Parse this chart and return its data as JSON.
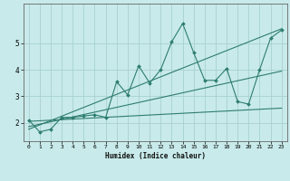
{
  "title": "",
  "xlabel": "Humidex (Indice chaleur)",
  "bg_color": "#c8eaea",
  "line_color": "#2e7d6e",
  "grid_color": "#a8d0d0",
  "xlim": [
    -0.5,
    23.5
  ],
  "ylim": [
    1.3,
    6.5
  ],
  "xticks": [
    0,
    1,
    2,
    3,
    4,
    5,
    6,
    7,
    8,
    9,
    10,
    11,
    12,
    13,
    14,
    15,
    16,
    17,
    18,
    19,
    20,
    21,
    22,
    23
  ],
  "yticks": [
    2,
    3,
    4,
    5
  ],
  "line1_x": [
    0,
    1,
    2,
    3,
    4,
    5,
    6,
    7,
    8,
    9,
    10,
    11,
    12,
    13,
    14,
    15,
    16,
    17,
    18,
    19,
    20,
    21,
    22,
    23
  ],
  "line1_y": [
    2.1,
    1.65,
    1.75,
    2.2,
    2.2,
    2.25,
    2.3,
    2.2,
    3.55,
    3.05,
    4.15,
    3.5,
    4.0,
    5.05,
    5.75,
    4.65,
    3.6,
    3.6,
    4.05,
    2.8,
    2.7,
    4.0,
    5.2,
    5.5
  ],
  "line2_x": [
    0,
    23
  ],
  "line2_y": [
    1.75,
    5.55
  ],
  "line3_x": [
    0,
    23
  ],
  "line3_y": [
    1.85,
    3.95
  ],
  "line4_x": [
    0,
    23
  ],
  "line4_y": [
    2.05,
    2.55
  ]
}
